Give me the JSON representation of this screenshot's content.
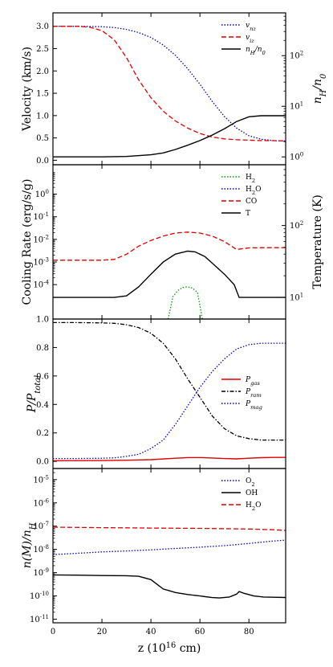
{
  "chart_data": [
    {
      "type": "line",
      "ylabel": "Velocity (km/s)",
      "ylabel_right": "n_H/n_0",
      "ylim": [
        -0.1,
        3.3
      ],
      "yticks": [
        "0.0",
        "0.5",
        "1.0",
        "1.5",
        "2.0",
        "2.5",
        "3.0"
      ],
      "right_log_range": [
        0.7,
        700
      ],
      "right_ticks": [
        "10^0",
        "10^1",
        "10^2"
      ],
      "legend": "top-right",
      "series": [
        {
          "name": "v_nz",
          "axis": "left",
          "color": "#0000cc",
          "style": "dotted",
          "x": [
            0,
            10,
            20,
            25,
            30,
            35,
            40,
            45,
            50,
            55,
            60,
            65,
            70,
            75,
            80,
            85,
            90,
            95
          ],
          "y": [
            3.0,
            3.0,
            2.99,
            2.97,
            2.93,
            2.86,
            2.75,
            2.58,
            2.35,
            2.05,
            1.7,
            1.32,
            0.98,
            0.72,
            0.55,
            0.47,
            0.44,
            0.43
          ]
        },
        {
          "name": "v_iz",
          "axis": "left",
          "color": "#e00000",
          "style": "dashed",
          "x": [
            0,
            10,
            15,
            20,
            25,
            30,
            35,
            40,
            45,
            50,
            55,
            60,
            65,
            70,
            75,
            80,
            85,
            90,
            95
          ],
          "y": [
            3.0,
            3.0,
            2.98,
            2.9,
            2.7,
            2.3,
            1.8,
            1.4,
            1.1,
            0.88,
            0.72,
            0.6,
            0.52,
            0.48,
            0.46,
            0.45,
            0.44,
            0.44,
            0.43
          ]
        },
        {
          "name": "n_H/n_0",
          "axis": "right",
          "color": "#000000",
          "style": "solid",
          "x": [
            0,
            10,
            20,
            30,
            40,
            45,
            50,
            55,
            60,
            65,
            70,
            75,
            80,
            85,
            90,
            95
          ],
          "y": [
            1.0,
            1.0,
            1.0,
            1.02,
            1.1,
            1.2,
            1.4,
            1.7,
            2.1,
            2.7,
            3.6,
            5.0,
            6.2,
            6.5,
            6.5,
            6.5
          ]
        }
      ],
      "series_labels": [
        "v_nz",
        "v_iz",
        "n_H/n_0"
      ]
    },
    {
      "type": "line",
      "ylabel": "Cooling Rate (erg/s/g)",
      "ylabel_right": "Temperature (K)",
      "ylim_log": [
        3e-06,
        20
      ],
      "yticks": [
        "10^-4",
        "10^-3",
        "10^-2",
        "10^-1",
        "10^0"
      ],
      "right_log_range": [
        5,
        700
      ],
      "right_ticks": [
        "10^1",
        "10^2"
      ],
      "legend": "top-right",
      "series": [
        {
          "name": "H2",
          "axis": "left",
          "color": "#00a000",
          "style": "dotted",
          "x": [
            47,
            49,
            51,
            53,
            55,
            57,
            59,
            61
          ],
          "y": [
            3e-06,
            3e-05,
            5.5e-05,
            7.5e-05,
            8e-05,
            7e-05,
            4.5e-05,
            3e-06
          ]
        },
        {
          "name": "H2O",
          "axis": "left",
          "color": "#0000cc",
          "style": "dotted",
          "x": [],
          "y": []
        },
        {
          "name": "CO",
          "axis": "left",
          "color": "#e00000",
          "style": "dashed",
          "x": [
            0,
            20,
            25,
            30,
            35,
            40,
            45,
            50,
            55,
            60,
            65,
            70,
            75,
            80,
            85,
            90,
            95
          ],
          "y": [
            0.0012,
            0.0012,
            0.0013,
            0.0022,
            0.005,
            0.009,
            0.014,
            0.019,
            0.021,
            0.019,
            0.014,
            0.008,
            0.0036,
            0.0042,
            0.0043,
            0.0043,
            0.0043
          ]
        },
        {
          "name": "T",
          "axis": "right",
          "color": "#000000",
          "style": "solid",
          "x": [
            0,
            20,
            25,
            30,
            35,
            40,
            45,
            50,
            55,
            58,
            62,
            65,
            70,
            74,
            76,
            80,
            85,
            90,
            95
          ],
          "y": [
            10,
            10,
            10,
            10.5,
            14,
            21,
            31,
            40,
            44,
            43,
            37,
            30,
            21,
            15,
            10,
            10,
            10,
            10,
            10
          ]
        }
      ],
      "series_labels": [
        "H2",
        "H2O",
        "CO",
        "T"
      ]
    },
    {
      "type": "line",
      "ylabel": "P/P_total",
      "ylim": [
        -0.05,
        1.0
      ],
      "yticks": [
        "0.0",
        "0.2",
        "0.4",
        "0.6",
        "0.8",
        "1.0"
      ],
      "legend": "center-right",
      "series": [
        {
          "name": "P_gas",
          "color": "#e00000",
          "style": "solid",
          "x": [
            0,
            20,
            30,
            40,
            50,
            55,
            60,
            65,
            70,
            75,
            80,
            85,
            90,
            95
          ],
          "y": [
            0.005,
            0.006,
            0.008,
            0.012,
            0.022,
            0.027,
            0.027,
            0.024,
            0.02,
            0.018,
            0.022,
            0.026,
            0.028,
            0.028
          ]
        },
        {
          "name": "P_ram",
          "color": "#000000",
          "style": "dashdot",
          "x": [
            0,
            10,
            20,
            25,
            30,
            35,
            40,
            45,
            50,
            55,
            60,
            65,
            70,
            75,
            80,
            85,
            90,
            95
          ],
          "y": [
            0.975,
            0.975,
            0.973,
            0.97,
            0.96,
            0.94,
            0.9,
            0.83,
            0.72,
            0.58,
            0.45,
            0.32,
            0.23,
            0.18,
            0.16,
            0.15,
            0.15,
            0.15
          ]
        },
        {
          "name": "P_mag",
          "color": "#0000cc",
          "style": "dotted",
          "x": [
            0,
            10,
            20,
            25,
            30,
            35,
            40,
            45,
            50,
            55,
            60,
            65,
            70,
            75,
            80,
            85,
            90,
            95
          ],
          "y": [
            0.02,
            0.02,
            0.022,
            0.025,
            0.035,
            0.05,
            0.09,
            0.15,
            0.26,
            0.39,
            0.52,
            0.63,
            0.72,
            0.79,
            0.82,
            0.83,
            0.83,
            0.83
          ]
        }
      ],
      "series_labels": [
        "P_gas",
        "P_ram",
        "P_mag"
      ]
    },
    {
      "type": "line",
      "ylabel": "n(M)/n_H",
      "xlabel": "z (10^16 cm)",
      "ylim_log": [
        7e-12,
        3e-05
      ],
      "yticks": [
        "10^-11",
        "10^-10",
        "10^-9",
        "10^-8",
        "10^-7",
        "10^-6",
        "10^-5"
      ],
      "xlim": [
        0,
        95
      ],
      "xticks": [
        "0",
        "20",
        "40",
        "60",
        "80"
      ],
      "legend": "top-right",
      "series": [
        {
          "name": "O2",
          "color": "#0000cc",
          "style": "dotted",
          "x": [
            0,
            10,
            20,
            30,
            40,
            50,
            60,
            70,
            80,
            90,
            95
          ],
          "y": [
            6e-09,
            6.8e-09,
            7.8e-09,
            8.6e-09,
            9.6e-09,
            1.1e-08,
            1.25e-08,
            1.45e-08,
            1.8e-08,
            2.3e-08,
            2.5e-08
          ]
        },
        {
          "name": "OH",
          "color": "#000000",
          "style": "solid",
          "x": [
            0,
            10,
            20,
            30,
            35,
            40,
            45,
            50,
            55,
            60,
            65,
            68,
            72,
            75,
            76,
            78,
            82,
            86,
            90,
            95
          ],
          "y": [
            8e-10,
            7.8e-10,
            7.5e-10,
            7.4e-10,
            7e-10,
            5e-10,
            2e-10,
            1.4e-10,
            1.15e-10,
            1e-10,
            8.5e-11,
            8.2e-11,
            9e-11,
            1.2e-10,
            1.55e-10,
            1.3e-10,
            1e-10,
            9e-11,
            8.8e-11,
            8.6e-11
          ]
        },
        {
          "name": "H2O",
          "color": "#e00000",
          "style": "dashed",
          "x": [
            0,
            20,
            40,
            60,
            80,
            90,
            95
          ],
          "y": [
            9e-08,
            8.6e-08,
            8.3e-08,
            8e-08,
            7.5e-08,
            7e-08,
            6.5e-08
          ]
        }
      ],
      "series_labels": [
        "O2",
        "OH",
        "H2O"
      ]
    }
  ]
}
